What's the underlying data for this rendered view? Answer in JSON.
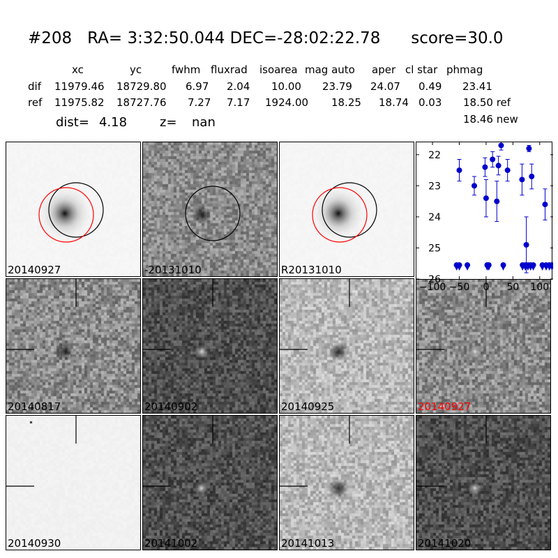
{
  "header": {
    "title": "#208   RA= 3:32:50.044 DEC=-28:02:22.78      score=30.0",
    "columns": [
      "xc",
      "yc",
      "fwhm",
      "fluxrad",
      "isoarea",
      "mag auto",
      "aper",
      "cl star",
      "phmag"
    ],
    "dif_row": {
      "label": "dif",
      "values": [
        "11979.46",
        "18729.80",
        "6.97",
        "2.04",
        "10.00",
        "23.79",
        "24.07",
        "0.49",
        "23.41"
      ]
    },
    "ref_row": {
      "label": "ref",
      "values": [
        "11975.82",
        "18727.76",
        "7.27",
        "7.17",
        "1924.00",
        "18.25",
        "18.74",
        "0.03",
        "18.50 ref"
      ]
    },
    "new_mag": "18.46 new",
    "dist_label": "dist=",
    "dist_value": "4.18",
    "z_label": "z=",
    "z_value": "nan"
  },
  "panels": [
    {
      "label": "20140927",
      "style": "galaxy",
      "label_color": "#000000"
    },
    {
      "label": "-20131010",
      "style": "diff",
      "label_color": "#000000"
    },
    {
      "label": "R20131010",
      "style": "galaxy",
      "label_color": "#000000"
    },
    {
      "label": "20140817",
      "style": "noise",
      "label_color": "#000000"
    },
    {
      "label": "20140902",
      "style": "noise_dark",
      "label_color": "#000000"
    },
    {
      "label": "20140925",
      "style": "noise_light",
      "label_color": "#000000"
    },
    {
      "label": "20140927",
      "style": "noise",
      "label_color": "#ff0000"
    },
    {
      "label": "20140930",
      "style": "blank",
      "label_color": "#000000"
    },
    {
      "label": "20141002",
      "style": "noise_dark",
      "label_color": "#000000"
    },
    {
      "label": "20141013",
      "style": "noise_light",
      "label_color": "#000000"
    },
    {
      "label": "20141020",
      "style": "noise_dark",
      "label_color": "#000000"
    }
  ],
  "chart_data": {
    "type": "scatter",
    "title": "",
    "xlabel": "",
    "ylabel": "",
    "xlim": [
      -130,
      125
    ],
    "ylim": [
      26,
      21.6
    ],
    "y_inverted": true,
    "x_ticks": [
      -100,
      -50,
      0,
      50,
      100
    ],
    "y_ticks": [
      22,
      23,
      24,
      25,
      26
    ],
    "marker_color": "#0000cc",
    "detections": [
      {
        "x": -50,
        "y": 22.5,
        "err": 0.35
      },
      {
        "x": -22,
        "y": 23.0,
        "err": 0.3
      },
      {
        "x": -2,
        "y": 22.4,
        "err": 0.3
      },
      {
        "x": 0,
        "y": 23.4,
        "err": 0.6
      },
      {
        "x": 12,
        "y": 22.15,
        "err": 0.25
      },
      {
        "x": 20,
        "y": 23.5,
        "err": 0.65
      },
      {
        "x": 23,
        "y": 22.35,
        "err": 0.3
      },
      {
        "x": 28,
        "y": 21.7,
        "err": 0.15
      },
      {
        "x": 40,
        "y": 22.5,
        "err": 0.35
      },
      {
        "x": 67,
        "y": 22.8,
        "err": 0.5
      },
      {
        "x": 75,
        "y": 24.9,
        "err": 0.9
      },
      {
        "x": 80,
        "y": 21.8,
        "err": 0.1
      },
      {
        "x": 85,
        "y": 22.7,
        "err": 0.4
      },
      {
        "x": 110,
        "y": 23.6,
        "err": 0.5
      }
    ],
    "limits": [
      {
        "x": -55,
        "y": 25.55
      },
      {
        "x": -50,
        "y": 25.55
      },
      {
        "x": -35,
        "y": 25.55
      },
      {
        "x": 2,
        "y": 25.55
      },
      {
        "x": 5,
        "y": 25.55
      },
      {
        "x": 32,
        "y": 25.55
      },
      {
        "x": 68,
        "y": 25.55
      },
      {
        "x": 73,
        "y": 25.55
      },
      {
        "x": 78,
        "y": 25.55
      },
      {
        "x": 83,
        "y": 25.55
      },
      {
        "x": 88,
        "y": 25.55
      },
      {
        "x": 105,
        "y": 25.55
      },
      {
        "x": 112,
        "y": 25.55
      },
      {
        "x": 118,
        "y": 25.55
      },
      {
        "x": 123,
        "y": 25.55
      }
    ]
  }
}
